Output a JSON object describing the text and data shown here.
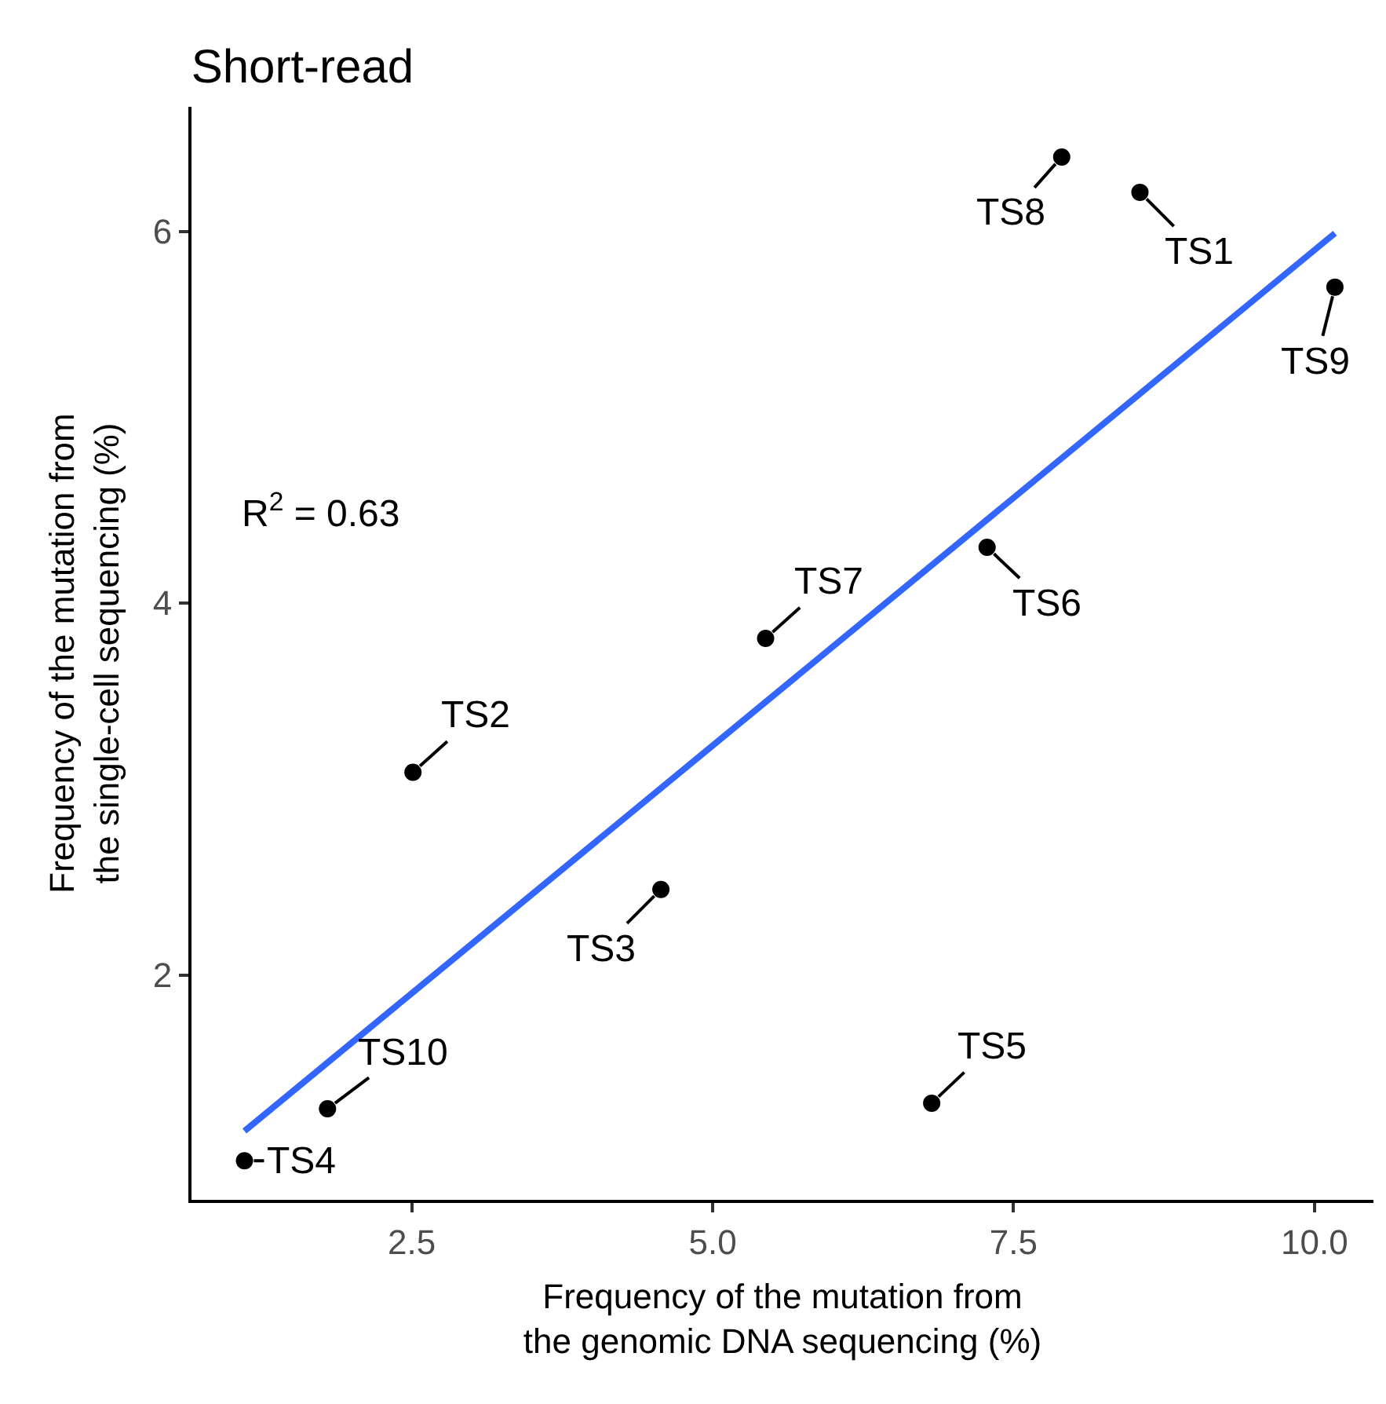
{
  "chart_data": {
    "type": "scatter",
    "title": "Short-read",
    "xlabel": "Frequency of the mutation from\nthe genomic DNA sequencing (%)",
    "ylabel": "Frequency of the mutation from\nthe single-cell sequencing (%)",
    "series": [
      {
        "color": "#000000",
        "x": [
          7.9,
          8.55,
          10.17,
          7.28,
          5.44,
          2.51,
          4.57,
          6.82,
          1.8,
          1.11
        ],
        "values": [
          6.4,
          6.21,
          5.7,
          4.3,
          3.81,
          3.09,
          2.46,
          1.31,
          1.28,
          1.0
        ]
      },
      {
        "type": "line",
        "marker": "none",
        "color": "#3366ff",
        "x": [
          1.11,
          10.17
        ],
        "values": [
          1.16,
          5.99
        ]
      }
    ],
    "annotations": [
      {
        "text": "TS8",
        "x": 7.9,
        "y": 6.4
      },
      {
        "text": "TS1",
        "x": 8.55,
        "y": 6.21
      },
      {
        "text": "TS9",
        "x": 10.17,
        "y": 5.7
      },
      {
        "text": "TS6",
        "x": 7.28,
        "y": 4.3
      },
      {
        "text": "TS7",
        "x": 5.44,
        "y": 3.81
      },
      {
        "text": "TS2",
        "x": 2.51,
        "y": 3.09
      },
      {
        "text": "TS3",
        "x": 4.57,
        "y": 2.46
      },
      {
        "text": "TS5",
        "x": 6.82,
        "y": 1.31
      },
      {
        "text": "TS10",
        "x": 1.8,
        "y": 1.28
      },
      {
        "text": "TS4",
        "x": 1.11,
        "y": 1.0
      },
      "R$^{2}$ = 0.63"
    ],
    "xlim": [
      0.67,
      10.49
    ],
    "ylim": [
      0.79,
      6.67
    ],
    "xticks": [
      {
        "value": 2.5,
        "label": "2.5"
      },
      {
        "value": 5.0,
        "label": "5.0"
      },
      {
        "value": 7.5,
        "label": "7.5"
      },
      {
        "value": 10.0,
        "label": "10.0"
      }
    ],
    "yticks": [
      2,
      4,
      6
    ],
    "marker": "circle"
  }
}
